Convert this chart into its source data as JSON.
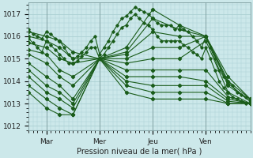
{
  "xlabel": "Pression niveau de la mer( hPa )",
  "xlim": [
    0,
    100
  ],
  "ylim": [
    1011.8,
    1017.5
  ],
  "yticks": [
    1012,
    1013,
    1014,
    1015,
    1016,
    1017
  ],
  "xtick_positions": [
    8,
    32,
    56,
    80
  ],
  "xtick_labels": [
    "Mar",
    "Mer",
    "Jeu",
    "Ven"
  ],
  "bg_color": "#cce8ea",
  "grid_color": "#aacfd2",
  "line_color": "#1a5c1a",
  "lines": [
    [
      0,
      1016.2,
      8,
      1016.0,
      14,
      1015.8,
      20,
      1015.3,
      32,
      1015.0,
      44,
      1015.5,
      56,
      1017.2,
      68,
      1016.5,
      80,
      1016.0,
      90,
      1014.2,
      100,
      1013.2
    ],
    [
      0,
      1016.0,
      8,
      1015.8,
      14,
      1015.5,
      20,
      1015.0,
      32,
      1015.0,
      44,
      1015.3,
      56,
      1016.8,
      68,
      1016.3,
      80,
      1016.0,
      90,
      1013.9,
      100,
      1013.1
    ],
    [
      0,
      1015.7,
      8,
      1015.5,
      14,
      1015.0,
      20,
      1014.8,
      32,
      1015.0,
      44,
      1015.2,
      56,
      1016.2,
      68,
      1016.0,
      80,
      1016.0,
      90,
      1014.0,
      100,
      1013.2
    ],
    [
      0,
      1015.4,
      8,
      1015.2,
      14,
      1014.5,
      20,
      1014.2,
      32,
      1015.0,
      44,
      1015.0,
      56,
      1015.5,
      68,
      1015.5,
      80,
      1016.0,
      90,
      1013.8,
      100,
      1013.1
    ],
    [
      0,
      1015.2,
      8,
      1014.8,
      14,
      1014.2,
      20,
      1013.8,
      32,
      1015.0,
      44,
      1014.8,
      56,
      1015.0,
      68,
      1015.0,
      80,
      1015.8,
      90,
      1013.5,
      100,
      1013.0
    ],
    [
      0,
      1014.8,
      8,
      1014.2,
      14,
      1013.8,
      20,
      1013.2,
      32,
      1015.0,
      44,
      1014.5,
      56,
      1014.5,
      68,
      1014.5,
      80,
      1014.5,
      90,
      1013.3,
      100,
      1013.0
    ],
    [
      0,
      1014.5,
      8,
      1013.8,
      14,
      1013.5,
      20,
      1013.0,
      32,
      1015.0,
      44,
      1014.2,
      56,
      1014.2,
      68,
      1014.2,
      80,
      1014.0,
      90,
      1013.2,
      100,
      1013.0
    ],
    [
      0,
      1014.2,
      8,
      1013.5,
      14,
      1013.2,
      20,
      1012.8,
      32,
      1015.0,
      44,
      1014.0,
      56,
      1013.8,
      68,
      1013.8,
      80,
      1013.8,
      90,
      1013.1,
      100,
      1013.0
    ],
    [
      0,
      1013.8,
      8,
      1013.2,
      14,
      1012.8,
      20,
      1012.5,
      32,
      1015.0,
      44,
      1013.8,
      56,
      1013.5,
      68,
      1013.5,
      80,
      1013.5,
      90,
      1013.0,
      100,
      1013.0
    ],
    [
      0,
      1013.5,
      8,
      1012.8,
      14,
      1012.5,
      20,
      1012.5,
      32,
      1015.0,
      44,
      1013.5,
      56,
      1013.2,
      68,
      1013.2,
      80,
      1013.2,
      90,
      1013.0,
      100,
      1013.0
    ]
  ],
  "dense_lines": [
    [
      0,
      1016.3,
      2,
      1016.1,
      4,
      1016.0,
      6,
      1015.9,
      8,
      1016.2,
      10,
      1016.1,
      12,
      1015.9,
      14,
      1015.8,
      16,
      1015.5,
      18,
      1015.2,
      20,
      1015.0,
      22,
      1015.1,
      24,
      1015.3,
      26,
      1015.5,
      28,
      1015.8,
      30,
      1016.0,
      32,
      1015.2,
      34,
      1015.5,
      36,
      1015.8,
      38,
      1016.2,
      40,
      1016.5,
      42,
      1016.8,
      44,
      1016.9,
      46,
      1017.1,
      48,
      1017.3,
      50,
      1017.2,
      52,
      1017.1,
      54,
      1017.0,
      56,
      1016.8,
      58,
      1016.6,
      60,
      1016.5,
      62,
      1016.5,
      64,
      1016.5,
      66,
      1016.3,
      68,
      1016.5,
      70,
      1016.3,
      72,
      1016.2,
      74,
      1016.0,
      76,
      1015.8,
      78,
      1015.5,
      80,
      1016.0,
      82,
      1015.5,
      84,
      1015.0,
      86,
      1014.5,
      88,
      1014.2,
      90,
      1014.0,
      92,
      1013.8,
      94,
      1013.5,
      96,
      1013.4,
      98,
      1013.3,
      100,
      1013.2
    ],
    [
      0,
      1015.9,
      2,
      1015.7,
      4,
      1015.5,
      6,
      1015.3,
      8,
      1015.8,
      10,
      1015.6,
      12,
      1015.4,
      14,
      1015.2,
      16,
      1015.0,
      18,
      1014.8,
      20,
      1014.8,
      22,
      1014.9,
      24,
      1015.1,
      26,
      1015.3,
      28,
      1015.5,
      30,
      1015.5,
      32,
      1015.0,
      34,
      1015.2,
      36,
      1015.5,
      38,
      1015.8,
      40,
      1016.1,
      42,
      1016.4,
      44,
      1016.5,
      46,
      1016.8,
      48,
      1017.0,
      50,
      1016.8,
      52,
      1016.6,
      54,
      1016.5,
      56,
      1016.3,
      58,
      1016.0,
      60,
      1015.8,
      62,
      1015.8,
      64,
      1015.8,
      66,
      1015.8,
      68,
      1015.8,
      70,
      1015.6,
      72,
      1015.5,
      74,
      1015.3,
      76,
      1015.2,
      78,
      1015.0,
      80,
      1015.5,
      82,
      1015.0,
      84,
      1014.5,
      86,
      1014.0,
      88,
      1013.7,
      90,
      1013.5,
      92,
      1013.3,
      94,
      1013.2,
      96,
      1013.1,
      98,
      1013.0,
      100,
      1013.0
    ]
  ]
}
